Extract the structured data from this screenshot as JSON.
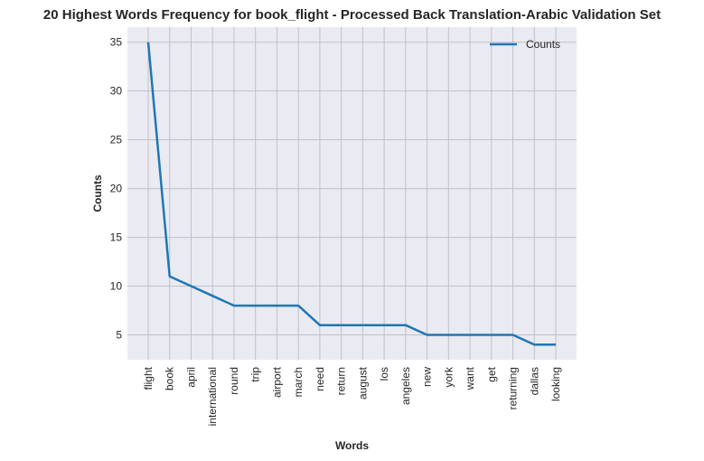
{
  "chart_data": {
    "type": "line",
    "title": "20 Highest Words Frequency for book_flight - Processed Back Translation-Arabic Validation Set",
    "xlabel": "Words",
    "ylabel": "Counts",
    "categories": [
      "flight",
      "book",
      "april",
      "international",
      "round",
      "trip",
      "airport",
      "march",
      "need",
      "return",
      "august",
      "los",
      "angeles",
      "new",
      "york",
      "want",
      "get",
      "returning",
      "dallas",
      "looking"
    ],
    "series": [
      {
        "name": "Counts",
        "values": [
          35,
          11,
          10,
          9,
          8,
          8,
          8,
          8,
          6,
          6,
          6,
          6,
          6,
          5,
          5,
          5,
          5,
          5,
          4,
          4
        ],
        "color": "#1f77b4"
      }
    ],
    "yticks": [
      5,
      10,
      15,
      20,
      25,
      30,
      35
    ],
    "ylim": [
      2.45,
      36.55
    ],
    "grid": true,
    "legend_position": "top-right",
    "background_color": "#eaeaf2",
    "grid_color": "#c0c0c6"
  }
}
